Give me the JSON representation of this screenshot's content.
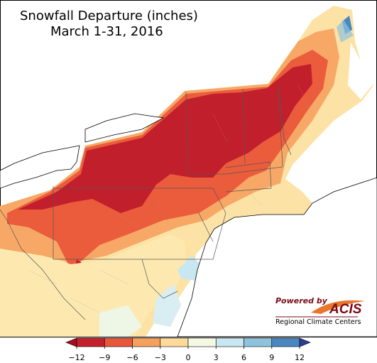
{
  "header": {
    "title": "Snowfall Departure (inches)",
    "subtitle": "March 1-31, 2016"
  },
  "legend": {
    "ticks": [
      {
        "value": -12,
        "label": "−12"
      },
      {
        "value": -9,
        "label": "−9"
      },
      {
        "value": -6,
        "label": "−6"
      },
      {
        "value": -3,
        "label": "−3"
      },
      0,
      3,
      6,
      9,
      12
    ],
    "colors": [
      "#a50f1e",
      "#c41f2c",
      "#e9573b",
      "#f6a05e",
      "#fdd99a",
      "#f5f8e2",
      "#c8e7f0",
      "#8fc3dd",
      "#4a86c1",
      "#2c3d96"
    ]
  },
  "logo": {
    "powered_by": "Powered by",
    "name": "ACIS",
    "tagline": "Regional Climate Centers"
  }
}
